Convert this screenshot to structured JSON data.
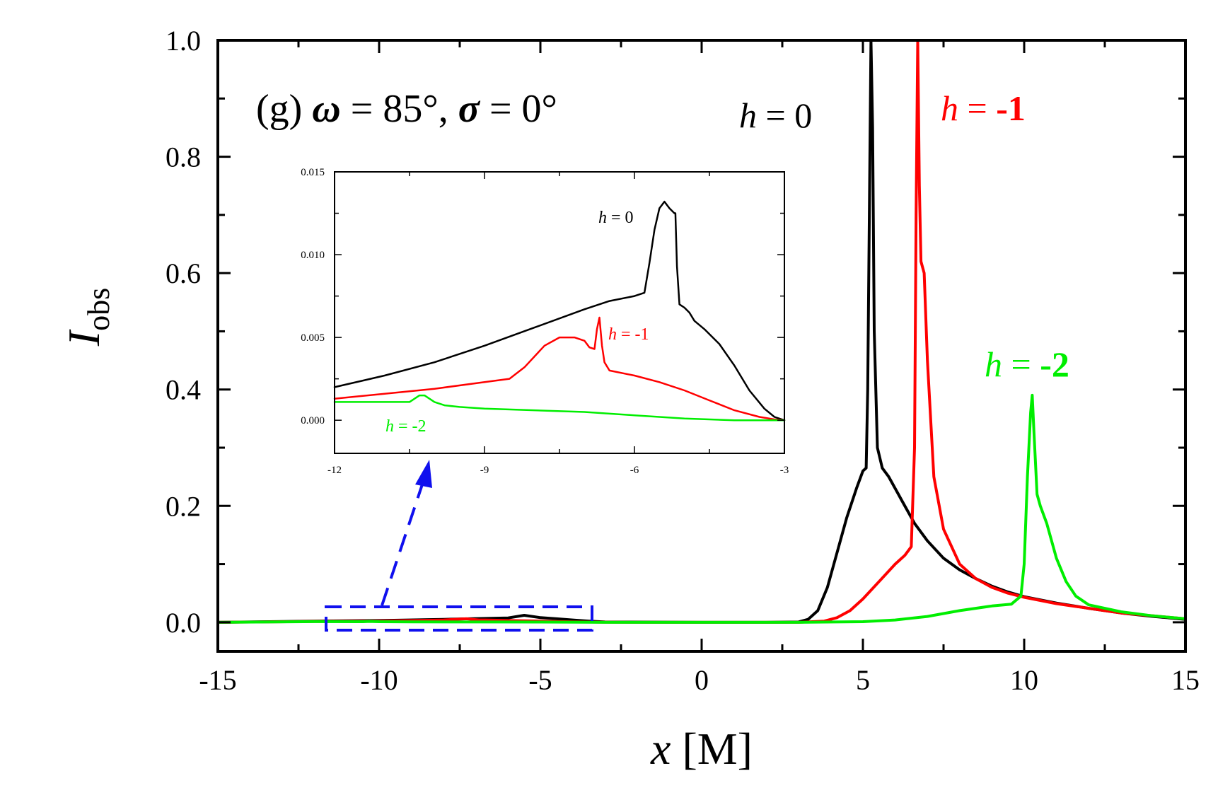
{
  "chart_data": [
    {
      "type": "line",
      "panel": "main",
      "title": "(g) ω = 85°, σ = 0°",
      "title_parts": {
        "panel": "(g) ",
        "omega": "ω",
        "omega_eq": " = 85°, ",
        "sigma": "σ",
        "sigma_eq": " = 0°"
      },
      "xlabel": "x [M]",
      "xlabel_var": "x",
      "xlabel_unit": " [M]",
      "ylabel": "I_obs",
      "ylabel_var": "I",
      "ylabel_sub": "obs",
      "xlim": [
        -15,
        15
      ],
      "ylim": [
        -0.05,
        1.0
      ],
      "xticks": [
        -15,
        -10,
        -5,
        0,
        5,
        10,
        15
      ],
      "xtick_labels": [
        "-15",
        "-10",
        "-5",
        "0",
        "5",
        "10",
        "15"
      ],
      "yticks": [
        0.0,
        0.2,
        0.4,
        0.6,
        0.8,
        1.0
      ],
      "ytick_labels": [
        "0.0",
        "0.2",
        "0.4",
        "0.6",
        "0.8",
        "1.0"
      ],
      "grid": false,
      "series": [
        {
          "name": "h = 0",
          "label_var": "h",
          "label_eq": " = 0",
          "color": "#000000",
          "x": [
            -15,
            -12,
            -10,
            -8,
            -6,
            -5.5,
            -5,
            -4.5,
            -4,
            -3.5,
            -3,
            0,
            2,
            3,
            3.3,
            3.6,
            3.9,
            4.2,
            4.5,
            4.8,
            5.0,
            5.1,
            5.15,
            5.2,
            5.25,
            5.3,
            5.35,
            5.45,
            5.6,
            5.8,
            6.2,
            6.6,
            7.0,
            7.5,
            8.0,
            8.5,
            9.0,
            9.5,
            10,
            11,
            12,
            13,
            14,
            15
          ],
          "y": [
            0.0,
            0.002,
            0.003,
            0.005,
            0.0075,
            0.012,
            0.008,
            0.006,
            0.004,
            0.002,
            0.0005,
            0.0,
            0.0,
            0.0005,
            0.005,
            0.02,
            0.06,
            0.12,
            0.18,
            0.23,
            0.26,
            0.265,
            0.4,
            0.7,
            1.0,
            0.85,
            0.5,
            0.3,
            0.265,
            0.25,
            0.21,
            0.17,
            0.14,
            0.11,
            0.09,
            0.075,
            0.062,
            0.052,
            0.044,
            0.033,
            0.024,
            0.016,
            0.01,
            0.005
          ]
        },
        {
          "name": "h = -1",
          "label_var": "h",
          "label_eq": " = ",
          "label_num": "-1",
          "color": "#ff0000",
          "x": [
            -15,
            -12,
            -10,
            -8,
            -7.3,
            -6.9,
            -6.7,
            -6,
            -5,
            -4,
            -3,
            0,
            3,
            3.8,
            4.2,
            4.6,
            5.0,
            5.5,
            6.0,
            6.3,
            6.5,
            6.6,
            6.65,
            6.7,
            6.75,
            6.8,
            6.9,
            7.0,
            7.2,
            7.5,
            8.0,
            8.5,
            9.0,
            9.5,
            10,
            11,
            12,
            13,
            14,
            15
          ],
          "y": [
            0.0,
            0.0015,
            0.002,
            0.004,
            0.006,
            0.004,
            0.004,
            0.003,
            0.002,
            0.0008,
            0.0001,
            0.0,
            0.0,
            0.002,
            0.008,
            0.02,
            0.04,
            0.07,
            0.1,
            0.115,
            0.13,
            0.3,
            0.7,
            1.0,
            0.75,
            0.62,
            0.6,
            0.45,
            0.25,
            0.16,
            0.1,
            0.075,
            0.06,
            0.05,
            0.043,
            0.032,
            0.024,
            0.016,
            0.011,
            0.006
          ]
        },
        {
          "name": "h = -2",
          "label_var": "h",
          "label_eq": " = ",
          "label_num": "-2",
          "color": "#00ee00",
          "x": [
            -15,
            -12,
            -10.5,
            -10.3,
            -10.0,
            -9,
            -7,
            -5,
            -3,
            0,
            3,
            5,
            6,
            7,
            8,
            9,
            9.6,
            9.9,
            10.0,
            10.1,
            10.2,
            10.25,
            10.3,
            10.4,
            10.5,
            10.7,
            11.0,
            11.3,
            11.6,
            12,
            13,
            14,
            15
          ],
          "y": [
            0.0,
            0.0012,
            0.0011,
            0.0015,
            0.0011,
            0.0008,
            0.0006,
            0.0004,
            0.0,
            0.0,
            0.0,
            0.001,
            0.004,
            0.01,
            0.02,
            0.028,
            0.031,
            0.045,
            0.1,
            0.25,
            0.36,
            0.39,
            0.33,
            0.22,
            0.2,
            0.17,
            0.11,
            0.07,
            0.045,
            0.03,
            0.018,
            0.011,
            0.006
          ]
        }
      ]
    },
    {
      "type": "line",
      "panel": "inset",
      "xlim": [
        -12,
        -3
      ],
      "ylim": [
        -0.002,
        0.015
      ],
      "xticks": [
        -12,
        -9,
        -6,
        -3
      ],
      "xtick_labels": [
        "-12",
        "-9",
        "-6",
        "-3"
      ],
      "yticks": [
        0.0,
        0.005,
        0.01,
        0.015
      ],
      "ytick_labels": [
        "0.000",
        "0.005",
        "0.010",
        "0.015"
      ],
      "grid": false,
      "series": [
        {
          "name": "h = 0",
          "label_var": "h",
          "label_eq": " = 0",
          "color": "#000000",
          "x": [
            -12,
            -11,
            -10,
            -9,
            -8,
            -7,
            -6.5,
            -6,
            -5.8,
            -5.7,
            -5.6,
            -5.5,
            -5.4,
            -5.3,
            -5.2,
            -5.18,
            -5.15,
            -5.1,
            -5.0,
            -4.9,
            -4.8,
            -4.6,
            -4.3,
            -4.0,
            -3.7,
            -3.4,
            -3.2,
            -3.0
          ],
          "y": [
            0.002,
            0.0027,
            0.0035,
            0.0045,
            0.0056,
            0.0067,
            0.0072,
            0.0075,
            0.0077,
            0.0095,
            0.0115,
            0.0128,
            0.0132,
            0.0128,
            0.0125,
            0.0125,
            0.0093,
            0.007,
            0.0068,
            0.0065,
            0.006,
            0.0055,
            0.0046,
            0.0033,
            0.0018,
            0.0007,
            0.0002,
            0.0
          ]
        },
        {
          "name": "h = -1",
          "label_var": "h",
          "label_eq": " = ",
          "label_num": "-1",
          "color": "#ff0000",
          "x": [
            -12,
            -11,
            -10,
            -9.0,
            -8.5,
            -8.2,
            -7.8,
            -7.5,
            -7.2,
            -7.0,
            -6.9,
            -6.8,
            -6.75,
            -6.7,
            -6.65,
            -6.6,
            -6.5,
            -6.0,
            -5.5,
            -5.0,
            -4.5,
            -4.0,
            -3.5,
            -3.2,
            -3.0
          ],
          "y": [
            0.0013,
            0.0016,
            0.0019,
            0.0023,
            0.0025,
            0.0032,
            0.0045,
            0.005,
            0.005,
            0.0048,
            0.0044,
            0.0043,
            0.0055,
            0.0062,
            0.0045,
            0.0035,
            0.003,
            0.0027,
            0.0023,
            0.0018,
            0.0012,
            0.0006,
            0.0002,
            5e-05,
            0.0
          ]
        },
        {
          "name": "h = -2",
          "label_var": "h",
          "label_eq": " = ",
          "label_num": "-2",
          "color": "#00ee00",
          "x": [
            -12,
            -11,
            -10.5,
            -10.4,
            -10.3,
            -10.2,
            -10.0,
            -9.8,
            -9.5,
            -9,
            -8,
            -7,
            -6,
            -5,
            -4,
            -3.5,
            -3
          ],
          "y": [
            0.0011,
            0.0011,
            0.0011,
            0.0013,
            0.0015,
            0.0015,
            0.0011,
            0.0009,
            0.0008,
            0.0007,
            0.0006,
            0.0005,
            0.0003,
            0.0001,
            0.0,
            0.0,
            0.0
          ]
        }
      ]
    }
  ]
}
